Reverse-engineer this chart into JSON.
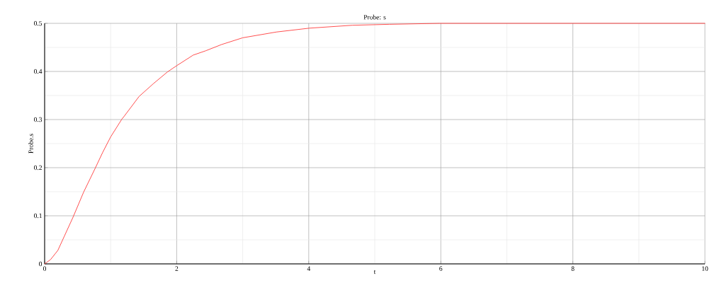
{
  "chart_data": {
    "type": "line",
    "title": "Probe: s",
    "xlabel": "t",
    "ylabel": "Probe.s",
    "x": [
      0,
      0.09,
      0.2,
      0.3,
      0.43,
      0.59,
      0.77,
      0.88,
      1.0,
      1.17,
      1.2,
      1.43,
      1.65,
      1.86,
      2.0,
      2.25,
      2.44,
      2.68,
      3.0,
      3.51,
      4.01,
      4.66,
      5.22,
      5.98,
      10
    ],
    "series": [
      {
        "color": "#ff3b3b",
        "values": [
          0,
          0.009,
          0.028,
          0.058,
          0.097,
          0.149,
          0.2,
          0.232,
          0.264,
          0.301,
          0.306,
          0.348,
          0.375,
          0.399,
          0.412,
          0.434,
          0.443,
          0.456,
          0.47,
          0.482,
          0.49,
          0.496,
          0.498,
          0.5,
          0.5
        ]
      }
    ],
    "xlim": [
      0,
      10
    ],
    "ylim": [
      0,
      0.5
    ],
    "xticks": [
      0,
      2,
      4,
      6,
      8,
      10
    ],
    "yticks": [
      0,
      0.1,
      0.2,
      0.3,
      0.4,
      0.5
    ],
    "grid": true,
    "marker": "none",
    "line_style": "solid"
  }
}
